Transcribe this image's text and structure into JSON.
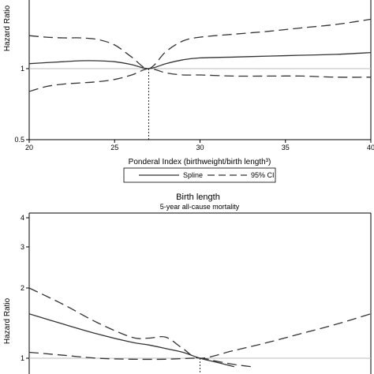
{
  "chart_data": [
    {
      "type": "line",
      "title": "",
      "xlabel": "Ponderal Index (birthweight/birth length³)",
      "ylabel": "Hazard Ratio",
      "xlim": [
        20,
        40
      ],
      "ylim_log": [
        0.5,
        1.7
      ],
      "xticks": [
        20,
        25,
        30,
        35,
        40
      ],
      "yticks": [
        {
          "v": 0.5,
          "label": "0.5"
        },
        {
          "v": 1,
          "label": "1"
        }
      ],
      "reference_y": 1,
      "reference_x": 27,
      "series": [
        {
          "name": "Spline",
          "style": "solid",
          "x": [
            20,
            21,
            22,
            23,
            24,
            25,
            26,
            27,
            28,
            29,
            30,
            32,
            34,
            36,
            38,
            40
          ],
          "y": [
            1.05,
            1.06,
            1.07,
            1.08,
            1.08,
            1.07,
            1.04,
            1.0,
            1.05,
            1.09,
            1.11,
            1.12,
            1.13,
            1.14,
            1.15,
            1.17
          ]
        },
        {
          "name": "95% CI",
          "style": "dashed",
          "x": [
            20,
            21,
            22,
            23,
            24,
            25,
            26,
            27,
            28,
            29,
            30,
            32,
            34,
            36,
            38,
            40
          ],
          "y": [
            1.38,
            1.36,
            1.35,
            1.35,
            1.33,
            1.26,
            1.12,
            1.0,
            1.18,
            1.31,
            1.36,
            1.4,
            1.44,
            1.49,
            1.54,
            1.62
          ]
        },
        {
          "name": "",
          "style": "dashed",
          "x": [
            20,
            21,
            22,
            23,
            24,
            25,
            26,
            27,
            28,
            29,
            30,
            32,
            34,
            36,
            38,
            40
          ],
          "y": [
            0.8,
            0.84,
            0.86,
            0.87,
            0.88,
            0.9,
            0.94,
            1.0,
            0.96,
            0.94,
            0.94,
            0.93,
            0.93,
            0.93,
            0.92,
            0.92
          ]
        }
      ],
      "legend": {
        "position": "bottom",
        "items": [
          "Spline",
          "95% CI"
        ]
      }
    },
    {
      "type": "line",
      "title": "Birth length",
      "subtitle": "5-year all-cause mortality",
      "xlabel": "",
      "ylabel": "Hazard Ratio",
      "xlim": [
        40,
        60
      ],
      "ylim_log": [
        0.92,
        4.2
      ],
      "yticks": [
        {
          "v": 1,
          "label": "1"
        },
        {
          "v": 2,
          "label": "2"
        },
        {
          "v": 3,
          "label": "3"
        },
        {
          "v": 4,
          "label": "4"
        }
      ],
      "reference_y": 1,
      "reference_x": 50,
      "series": [
        {
          "name": "Spline",
          "style": "solid",
          "x": [
            40,
            42,
            44,
            46,
            47,
            48,
            49,
            50,
            51,
            52
          ],
          "y": [
            1.55,
            1.4,
            1.27,
            1.17,
            1.14,
            1.1,
            1.06,
            1.0,
            0.96,
            0.92
          ]
        },
        {
          "name": "95% CI",
          "style": "dashed",
          "x": [
            40,
            42,
            44,
            46,
            47,
            48,
            49,
            50,
            52,
            54,
            56,
            58,
            60
          ],
          "y": [
            2.0,
            1.7,
            1.42,
            1.23,
            1.22,
            1.23,
            1.1,
            1.0,
            1.08,
            1.17,
            1.28,
            1.4,
            1.55
          ]
        },
        {
          "name": "",
          "style": "dashed",
          "x": [
            40,
            42,
            44,
            46,
            48,
            50,
            51,
            52,
            53
          ],
          "y": [
            1.06,
            1.03,
            1.0,
            0.99,
            0.99,
            1.0,
            0.97,
            0.94,
            0.92
          ]
        }
      ]
    }
  ]
}
